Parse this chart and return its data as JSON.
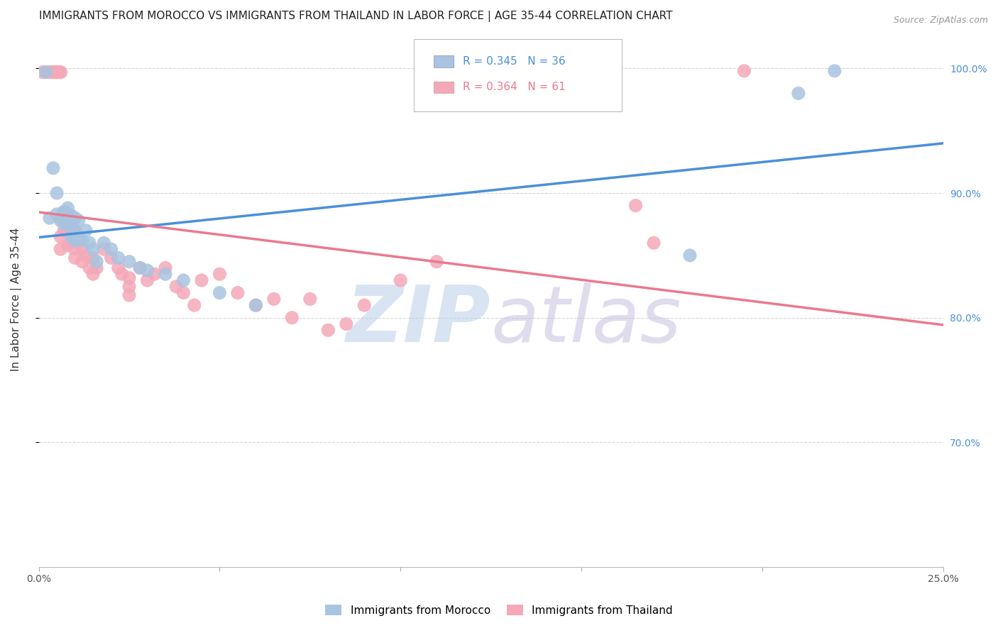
{
  "title": "IMMIGRANTS FROM MOROCCO VS IMMIGRANTS FROM THAILAND IN LABOR FORCE | AGE 35-44 CORRELATION CHART",
  "source": "Source: ZipAtlas.com",
  "ylabel": "In Labor Force | Age 35-44",
  "xlim": [
    0.0,
    0.25
  ],
  "ylim": [
    0.6,
    1.03
  ],
  "xticks": [
    0.0,
    0.05,
    0.1,
    0.15,
    0.2,
    0.25
  ],
  "xticklabels": [
    "0.0%",
    "",
    "",
    "",
    "",
    "25.0%"
  ],
  "yticks_right": [
    1.0,
    0.9,
    0.8,
    0.7
  ],
  "yticklabels_right": [
    "100.0%",
    "90.0%",
    "80.0%",
    "70.0%"
  ],
  "morocco_color": "#a8c4e0",
  "thailand_color": "#f4a8b8",
  "morocco_line_color": "#4a90d9",
  "thailand_line_color": "#e87a90",
  "morocco_R": 0.345,
  "morocco_N": 36,
  "thailand_R": 0.364,
  "thailand_N": 61,
  "title_fontsize": 11,
  "axis_label_fontsize": 11,
  "tick_fontsize": 10,
  "morocco_x": [
    0.002,
    0.003,
    0.004,
    0.005,
    0.005,
    0.006,
    0.007,
    0.007,
    0.008,
    0.008,
    0.009,
    0.009,
    0.009,
    0.01,
    0.01,
    0.01,
    0.011,
    0.011,
    0.012,
    0.013,
    0.014,
    0.015,
    0.016,
    0.018,
    0.02,
    0.022,
    0.025,
    0.028,
    0.03,
    0.035,
    0.04,
    0.05,
    0.06,
    0.18,
    0.21,
    0.22
  ],
  "morocco_y": [
    0.997,
    0.88,
    0.92,
    0.9,
    0.883,
    0.878,
    0.885,
    0.875,
    0.888,
    0.882,
    0.875,
    0.882,
    0.865,
    0.88,
    0.87,
    0.862,
    0.878,
    0.865,
    0.862,
    0.87,
    0.86,
    0.855,
    0.845,
    0.86,
    0.855,
    0.848,
    0.845,
    0.84,
    0.838,
    0.835,
    0.83,
    0.82,
    0.81,
    0.85,
    0.98,
    0.998
  ],
  "thailand_x": [
    0.001,
    0.002,
    0.003,
    0.003,
    0.004,
    0.004,
    0.005,
    0.005,
    0.005,
    0.006,
    0.006,
    0.006,
    0.006,
    0.006,
    0.007,
    0.007,
    0.008,
    0.008,
    0.008,
    0.009,
    0.009,
    0.01,
    0.01,
    0.01,
    0.011,
    0.012,
    0.012,
    0.013,
    0.014,
    0.015,
    0.015,
    0.016,
    0.018,
    0.02,
    0.022,
    0.023,
    0.025,
    0.025,
    0.025,
    0.028,
    0.03,
    0.032,
    0.035,
    0.038,
    0.04,
    0.043,
    0.045,
    0.05,
    0.055,
    0.06,
    0.065,
    0.07,
    0.075,
    0.08,
    0.085,
    0.09,
    0.1,
    0.11,
    0.165,
    0.17,
    0.195
  ],
  "thailand_y": [
    0.997,
    0.997,
    0.997,
    0.997,
    0.997,
    0.997,
    0.997,
    0.997,
    0.997,
    0.997,
    0.997,
    0.88,
    0.865,
    0.855,
    0.885,
    0.87,
    0.883,
    0.87,
    0.858,
    0.878,
    0.86,
    0.87,
    0.855,
    0.848,
    0.862,
    0.855,
    0.845,
    0.85,
    0.84,
    0.848,
    0.835,
    0.84,
    0.855,
    0.848,
    0.84,
    0.835,
    0.832,
    0.825,
    0.818,
    0.84,
    0.83,
    0.835,
    0.84,
    0.825,
    0.82,
    0.81,
    0.83,
    0.835,
    0.82,
    0.81,
    0.815,
    0.8,
    0.815,
    0.79,
    0.795,
    0.81,
    0.83,
    0.845,
    0.89,
    0.86,
    0.998
  ]
}
